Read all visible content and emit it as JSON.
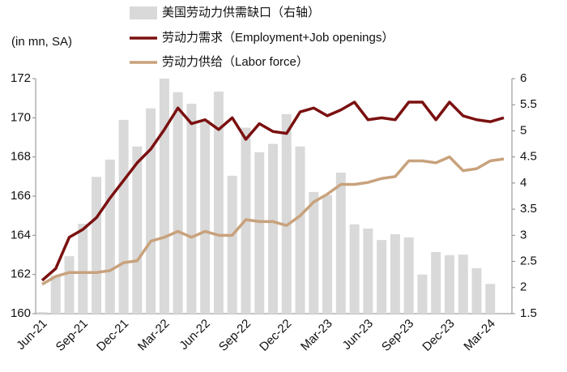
{
  "chart_data": {
    "type": "bar-line",
    "y_label": "(in mn, SA)",
    "categories": [
      "Jun-21",
      null,
      null,
      "Sep-21",
      null,
      null,
      "Dec-21",
      null,
      null,
      "Mar-22",
      null,
      null,
      "Jun-22",
      null,
      null,
      "Sep-22",
      null,
      null,
      "Dec-22",
      null,
      null,
      "Mar-23",
      null,
      null,
      "Jun-23",
      null,
      null,
      "Sep-23",
      null,
      null,
      "Dec-23",
      null,
      null,
      "Mar-24",
      null
    ],
    "series": [
      {
        "name": "美国劳动力供需缺口（右轴）",
        "kind": "bar",
        "axis": "y2",
        "color": "#d9d9d9",
        "values": [
          1.53,
          2.23,
          2.6,
          3.22,
          4.12,
          4.45,
          5.21,
          4.7,
          5.43,
          6.0,
          5.74,
          5.52,
          5.21,
          5.75,
          4.14,
          5.06,
          4.59,
          4.75,
          5.32,
          4.7,
          3.83,
          3.77,
          4.2,
          3.21,
          3.13,
          2.91,
          3.02,
          2.96,
          2.25,
          2.68,
          2.62,
          2.63,
          2.37,
          2.07,
          null
        ]
      },
      {
        "name": "劳动力需求（Employment+Job openings）",
        "kind": "line",
        "color": "#7b1010",
        "values": [
          161.7,
          162.3,
          163.9,
          164.3,
          164.9,
          165.9,
          166.8,
          167.7,
          168.4,
          169.4,
          170.5,
          169.7,
          169.9,
          169.4,
          170.0,
          168.9,
          169.7,
          169.3,
          169.2,
          170.3,
          170.5,
          170.1,
          170.4,
          170.8,
          169.9,
          170.0,
          169.9,
          170.8,
          170.8,
          169.9,
          170.8,
          170.1,
          169.9,
          169.8,
          170.0
        ]
      },
      {
        "name": "劳动力供给（Labor force）",
        "kind": "line",
        "color": "#c8a27c",
        "values": [
          161.5,
          161.9,
          162.1,
          162.1,
          162.1,
          162.2,
          162.6,
          162.7,
          163.7,
          163.9,
          164.2,
          163.9,
          164.2,
          164.0,
          164.0,
          164.8,
          164.7,
          164.7,
          164.5,
          165.0,
          165.7,
          166.1,
          166.6,
          166.6,
          166.7,
          166.9,
          167.0,
          167.8,
          167.8,
          167.7,
          168.0,
          167.3,
          167.4,
          167.8,
          167.9
        ]
      }
    ],
    "ylim": [
      160,
      172
    ],
    "yticks": [
      160,
      162,
      164,
      166,
      168,
      170,
      172
    ],
    "y2lim": [
      1.5,
      6
    ],
    "y2ticks": [
      1.5,
      2,
      2.5,
      3,
      3.5,
      4,
      4.5,
      5,
      5.5,
      6
    ]
  }
}
